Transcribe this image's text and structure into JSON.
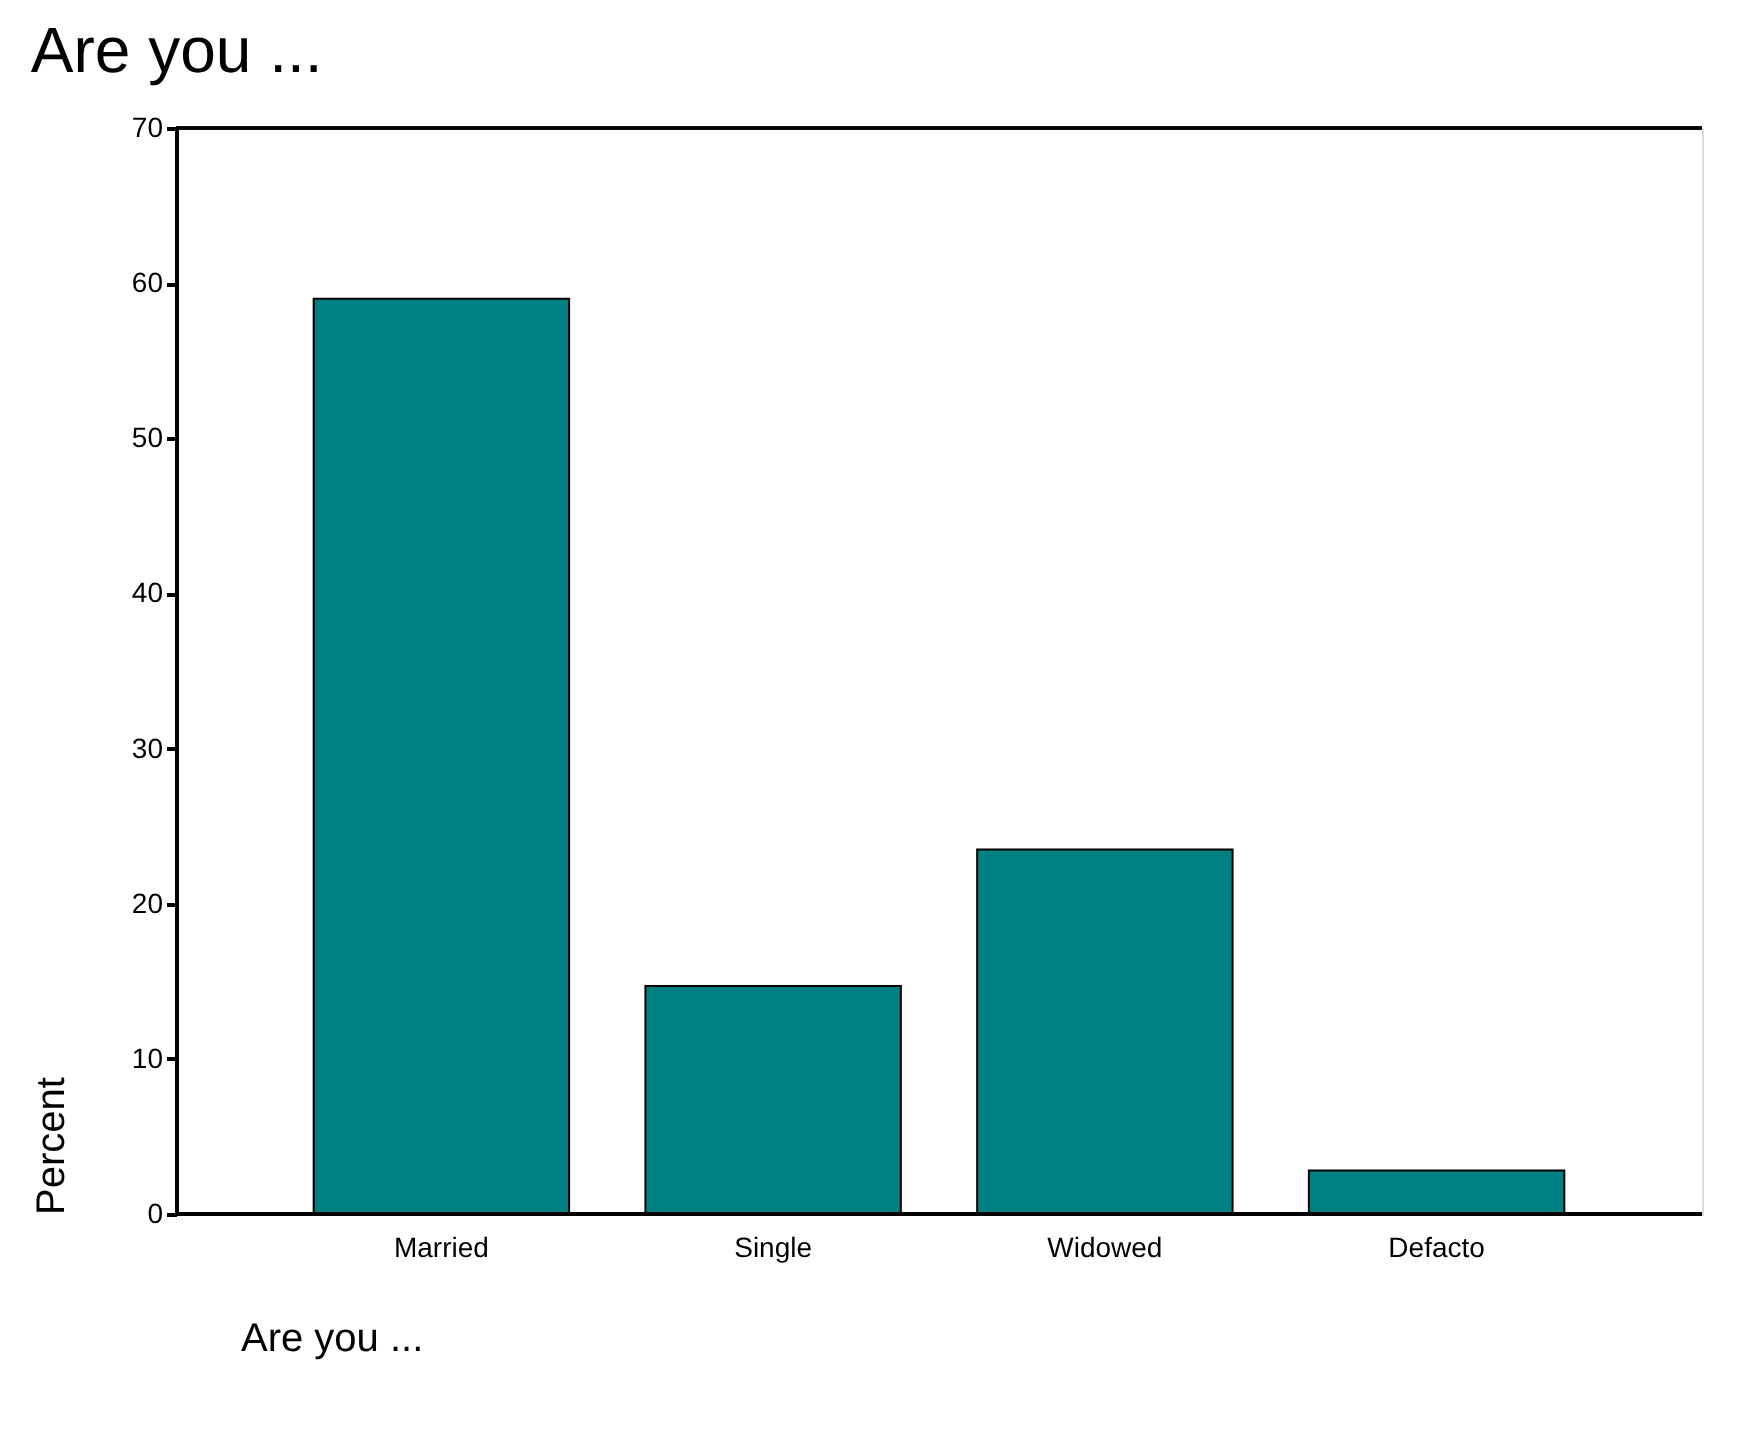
{
  "chart_data": {
    "type": "bar",
    "title": "Are you ...",
    "xlabel": "Are you ...",
    "ylabel": "Percent",
    "categories": [
      "Married",
      "Single",
      "Widowed",
      "Defacto"
    ],
    "values": [
      59.0,
      14.7,
      23.5,
      2.8
    ],
    "color": "#008080",
    "ylim": [
      0,
      70
    ],
    "yticks": [
      0,
      10,
      20,
      30,
      40,
      50,
      60,
      70
    ],
    "grid": false
  }
}
